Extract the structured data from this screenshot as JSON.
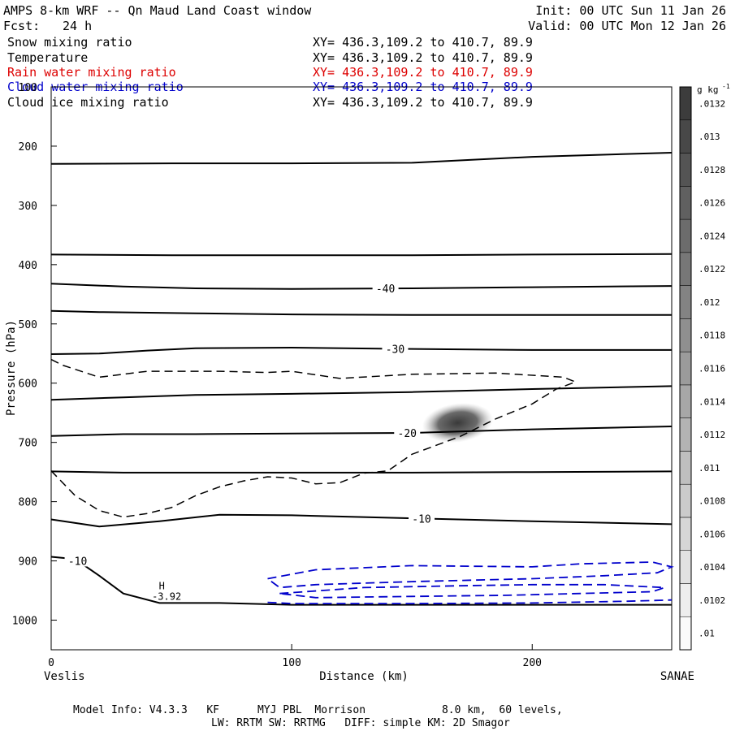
{
  "header": {
    "title": "AMPS 8-km WRF -- Qn Maud Land Coast window",
    "fcst_label": "Fcst:",
    "fcst_value": "24 h",
    "init": "Init: 00 UTC Sun 11 Jan 26",
    "valid": "Valid: 00 UTC Mon 12 Jan 26"
  },
  "legend": [
    {
      "name": "Snow mixing ratio",
      "xy": "XY= 436.3,109.2 to 410.7, 89.9",
      "color": "#000000"
    },
    {
      "name": "Temperature",
      "xy": "XY= 436.3,109.2 to 410.7, 89.9",
      "color": "#000000"
    },
    {
      "name": "Rain water mixing ratio",
      "xy": "XY= 436.3,109.2 to 410.7, 89.9",
      "color": "#dd0000"
    },
    {
      "name": "Cloud water mixing ratio",
      "xy": "XY= 436.3,109.2 to 410.7, 89.9",
      "color": "#0000cc"
    },
    {
      "name": "Cloud ice mixing ratio",
      "xy": "XY= 436.3,109.2 to 410.7, 89.9",
      "color": "#000000"
    }
  ],
  "footer": {
    "line1": "Model Info: V4.3.3   KF      MYJ PBL  Morrison            8.0 km,  60 levels,",
    "line2": "LW: RRTM SW: RRTMG   DIFF: simple KM: 2D Smagor"
  },
  "chart_data": {
    "type": "cross-section",
    "xlabel": "Distance (km)",
    "ylabel": "Pressure (hPa)",
    "x_range": [
      0,
      258
    ],
    "y_range": [
      100,
      1050
    ],
    "x_ticks": [
      0,
      100,
      200
    ],
    "y_ticks": [
      100,
      200,
      300,
      400,
      500,
      600,
      700,
      800,
      900,
      1000
    ],
    "left_endpoint": "Veslis",
    "right_endpoint": "SANAE",
    "colorbar": {
      "unit": "g kg",
      "unit_exp": "-1",
      "ticks": [
        ".01",
        ".0102",
        ".0104",
        ".0106",
        ".0108",
        ".011",
        ".0112",
        ".0114",
        ".0116",
        ".0118",
        ".012",
        ".0122",
        ".0124",
        ".0126",
        ".0128",
        ".013",
        ".0132"
      ]
    },
    "snow_blob": {
      "center_km": 169,
      "center_hpa": 667,
      "value": 0.0132
    },
    "temperature_lines": [
      {
        "x": [
          0,
          50,
          100,
          150,
          200,
          258
        ],
        "p": [
          230,
          229,
          229,
          228,
          218,
          211
        ],
        "label": ""
      },
      {
        "x": [
          0,
          50,
          100,
          150,
          200,
          258
        ],
        "p": [
          383,
          384,
          384,
          384,
          383,
          382
        ],
        "label": ""
      },
      {
        "x": [
          0,
          30,
          60,
          100,
          150,
          200,
          258
        ],
        "p": [
          432,
          437,
          440,
          441,
          440,
          438,
          436
        ],
        "label": "-40",
        "label_km": 139
      },
      {
        "x": [
          0,
          20,
          60,
          100,
          150,
          200,
          258
        ],
        "p": [
          478,
          480,
          482,
          484,
          485,
          485,
          485
        ],
        "label": ""
      },
      {
        "x": [
          0,
          20,
          40,
          60,
          100,
          140,
          200,
          258
        ],
        "p": [
          551,
          550,
          545,
          541,
          540,
          542,
          544,
          544
        ],
        "label": "-30",
        "label_km": 143
      },
      {
        "x": [
          0,
          30,
          60,
          100,
          150,
          200,
          258
        ],
        "p": [
          628,
          624,
          620,
          618,
          615,
          610,
          605
        ],
        "label": ""
      },
      {
        "x": [
          0,
          30,
          60,
          100,
          150,
          200,
          258
        ],
        "p": [
          689,
          686,
          686,
          685,
          684,
          678,
          673
        ],
        "label": "-20",
        "label_km": 148
      },
      {
        "x": [
          0,
          30,
          60,
          100,
          150,
          200,
          258
        ],
        "p": [
          749,
          751,
          751,
          751,
          751,
          750,
          749
        ],
        "label": ""
      },
      {
        "x": [
          0,
          20,
          45,
          70,
          100,
          150,
          200,
          258
        ],
        "p": [
          830,
          842,
          833,
          822,
          823,
          828,
          833,
          838
        ],
        "label": "-10",
        "label_km": 154
      },
      {
        "x": [
          0,
          10,
          20,
          30,
          45,
          70,
          100,
          150,
          200,
          258
        ],
        "p": [
          893,
          897,
          925,
          955,
          971,
          971,
          974,
          974,
          974,
          974
        ],
        "label": "-10",
        "label_km": 11
      }
    ],
    "cloud_ice_dashed": [
      {
        "x": [
          0,
          5,
          20,
          40,
          70,
          90,
          100,
          120,
          150,
          185,
          213,
          218,
          210,
          200,
          185,
          170,
          150,
          140,
          130,
          120,
          110,
          100,
          90,
          80,
          70,
          60,
          50,
          40,
          30,
          20,
          10,
          0
        ],
        "p": [
          560,
          570,
          590,
          580,
          580,
          582,
          580,
          592,
          585,
          583,
          590,
          598,
          610,
          635,
          660,
          690,
          720,
          748,
          752,
          768,
          770,
          760,
          758,
          765,
          775,
          790,
          810,
          820,
          826,
          815,
          790,
          748
        ]
      }
    ],
    "cloud_water_contours": [
      {
        "x": [
          90,
          110,
          150,
          200,
          220,
          250,
          258,
          252,
          230,
          200,
          150,
          110,
          95,
          90
        ],
        "p": [
          930,
          915,
          908,
          910,
          905,
          902,
          910,
          920,
          925,
          930,
          935,
          940,
          945,
          930
        ]
      },
      {
        "x": [
          95,
          130,
          170,
          200,
          230,
          255,
          250,
          220,
          190,
          150,
          110,
          95
        ],
        "p": [
          955,
          945,
          942,
          940,
          940,
          945,
          952,
          955,
          958,
          960,
          962,
          955
        ]
      },
      {
        "x": [
          90,
          100,
          150,
          200,
          240,
          258
        ],
        "p": [
          970,
          972,
          972,
          971,
          968,
          966
        ]
      }
    ],
    "annotations": [
      {
        "text": "H",
        "x_km": 46,
        "p": 948
      },
      {
        "text": "-3.92",
        "x_km": 48,
        "p": 966
      }
    ]
  }
}
